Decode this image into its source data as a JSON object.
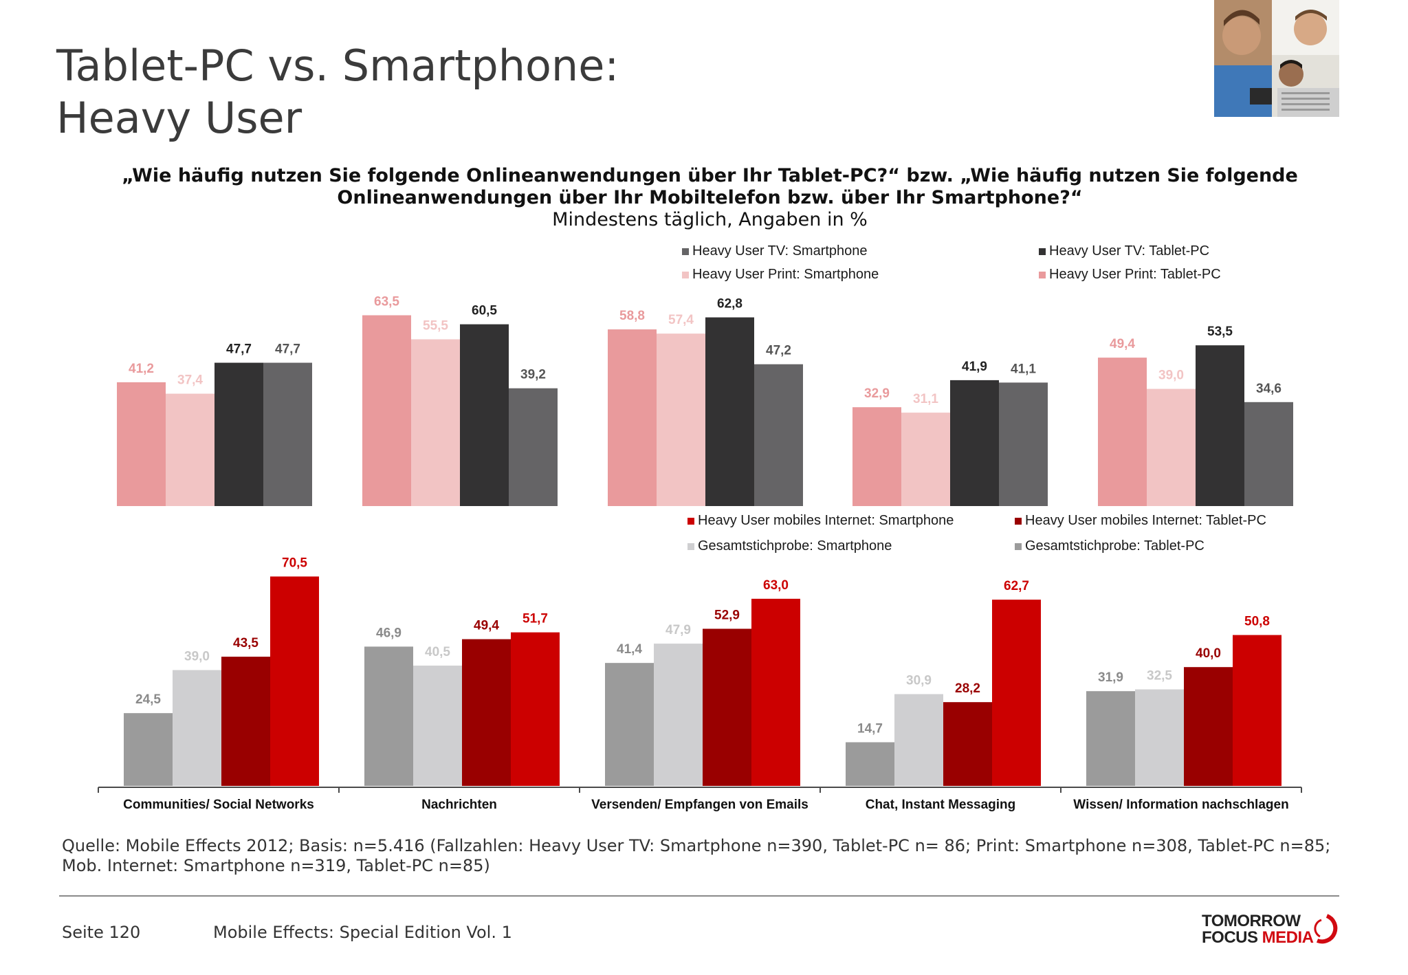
{
  "slide": {
    "title_line1": "Tablet-PC vs. Smartphone:",
    "title_line2": "Heavy User",
    "question_line1": "„Wie häufig nutzen Sie folgende Onlineanwendungen über Ihr Tablet-PC?“ bzw. „Wie häufig nutzen Sie folgende",
    "question_line2": "Onlineanwendungen über Ihr Mobiltelefon bzw. über Ihr Smartphone?“",
    "question_line3": "Mindestens täglich, Angaben in %"
  },
  "footer": {
    "source": "Quelle: Mobile Effects 2012; Basis: n=5.416 (Fallzahlen: Heavy User TV: Smartphone n=390, Tablet-PC n= 86; Print: Smartphone n=308, Tablet-PC n=85; Mob. Internet: Smartphone n=319, Tablet-PC n=85)",
    "page": "Seite 120",
    "edition": "Mobile Effects: Special Edition Vol. 1"
  },
  "logo": {
    "line1": "TOMORROW",
    "line2a": "FOCUS ",
    "line2b": "MEDIA"
  },
  "chart_data": [
    {
      "type": "bar",
      "panel": "top",
      "categories": [
        "Communities/ Social Networks",
        "Nachrichten",
        "Versenden/ Empfangen von Emails",
        "Chat, Instant Messaging",
        "Wissen/ Information nachschlagen"
      ],
      "series": [
        {
          "name": "Heavy User Print: Tablet-PC",
          "color": "#e99a9c",
          "label_color": "#e99a9c",
          "values": [
            41.2,
            63.5,
            58.8,
            32.9,
            49.4
          ]
        },
        {
          "name": "Heavy User Print: Smartphone",
          "color": "#f2c4c4",
          "label_color": "#f2c4c4",
          "values": [
            37.4,
            55.5,
            57.4,
            31.1,
            39.0
          ]
        },
        {
          "name": "Heavy User TV: Tablet-PC",
          "color": "#333233",
          "label_color": "#222222",
          "values": [
            47.7,
            60.5,
            62.8,
            41.9,
            53.5
          ]
        },
        {
          "name": "Heavy User TV: Smartphone",
          "color": "#656466",
          "label_color": "#555555",
          "values": [
            47.7,
            39.2,
            47.2,
            41.1,
            34.6
          ]
        }
      ],
      "legend_entries": [
        {
          "label": "Heavy User TV: Smartphone",
          "color": "#656466"
        },
        {
          "label": "Heavy User TV: Tablet-PC",
          "color": "#333233"
        },
        {
          "label": "Heavy User Print: Smartphone",
          "color": "#f2c4c4"
        },
        {
          "label": "Heavy User Print: Tablet-PC",
          "color": "#e99a9c"
        }
      ],
      "value_labels": [
        [
          "41,2",
          "63,5",
          "58,8",
          "32,9",
          "49,4"
        ],
        [
          "37,4",
          "55,5",
          "57,4",
          "31,1",
          "39,0"
        ],
        [
          "47,7",
          "60,5",
          "62,8",
          "41,9",
          "53,5"
        ],
        [
          "47,7",
          "39,2",
          "47,2",
          "41,1",
          "34,6"
        ]
      ],
      "ylim": [
        0,
        80
      ],
      "legend_position": "top-right",
      "grid": false
    },
    {
      "type": "bar",
      "panel": "bottom",
      "categories": [
        "Communities/ Social Networks",
        "Nachrichten",
        "Versenden/ Empfangen von Emails",
        "Chat, Instant Messaging",
        "Wissen/ Information nachschlagen"
      ],
      "series": [
        {
          "name": "Gesamtstichprobe: Tablet-PC",
          "color": "#9b9b9b",
          "label_color": "#8a8a8a",
          "values": [
            24.5,
            46.9,
            41.4,
            14.7,
            31.9
          ]
        },
        {
          "name": "Gesamtstichprobe: Smartphone",
          "color": "#cfcfd1",
          "label_color": "#c8c8c8",
          "values": [
            39.0,
            40.5,
            47.9,
            30.9,
            32.5
          ]
        },
        {
          "name": "Heavy User mobiles Internet: Tablet-PC",
          "color": "#990000",
          "label_color": "#990000",
          "values": [
            43.5,
            49.4,
            52.9,
            28.2,
            40.0
          ]
        },
        {
          "name": "Heavy User mobiles Internet: Smartphone",
          "color": "#cc0000",
          "label_color": "#cc0000",
          "values": [
            70.5,
            51.7,
            63.0,
            62.7,
            50.8
          ]
        }
      ],
      "legend_entries": [
        {
          "label": "Heavy User mobiles Internet: Smartphone",
          "color": "#cc0000"
        },
        {
          "label": "Heavy User mobiles Internet: Tablet-PC",
          "color": "#990000"
        },
        {
          "label": "Gesamtstichprobe: Smartphone",
          "color": "#cfcfd1"
        },
        {
          "label": "Gesamtstichprobe: Tablet-PC",
          "color": "#9b9b9b"
        }
      ],
      "value_labels": [
        [
          "24,5",
          "46,9",
          "41,4",
          "14,7",
          "31,9"
        ],
        [
          "39,0",
          "40,5",
          "47,9",
          "30,9",
          "32,5"
        ],
        [
          "43,5",
          "49,4",
          "52,9",
          "28,2",
          "40,0"
        ],
        [
          "70,5",
          "51,7",
          "63,0",
          "62,7",
          "50,8"
        ]
      ],
      "ylim": [
        0,
        80
      ],
      "legend_position": "top-right",
      "grid": false
    }
  ]
}
